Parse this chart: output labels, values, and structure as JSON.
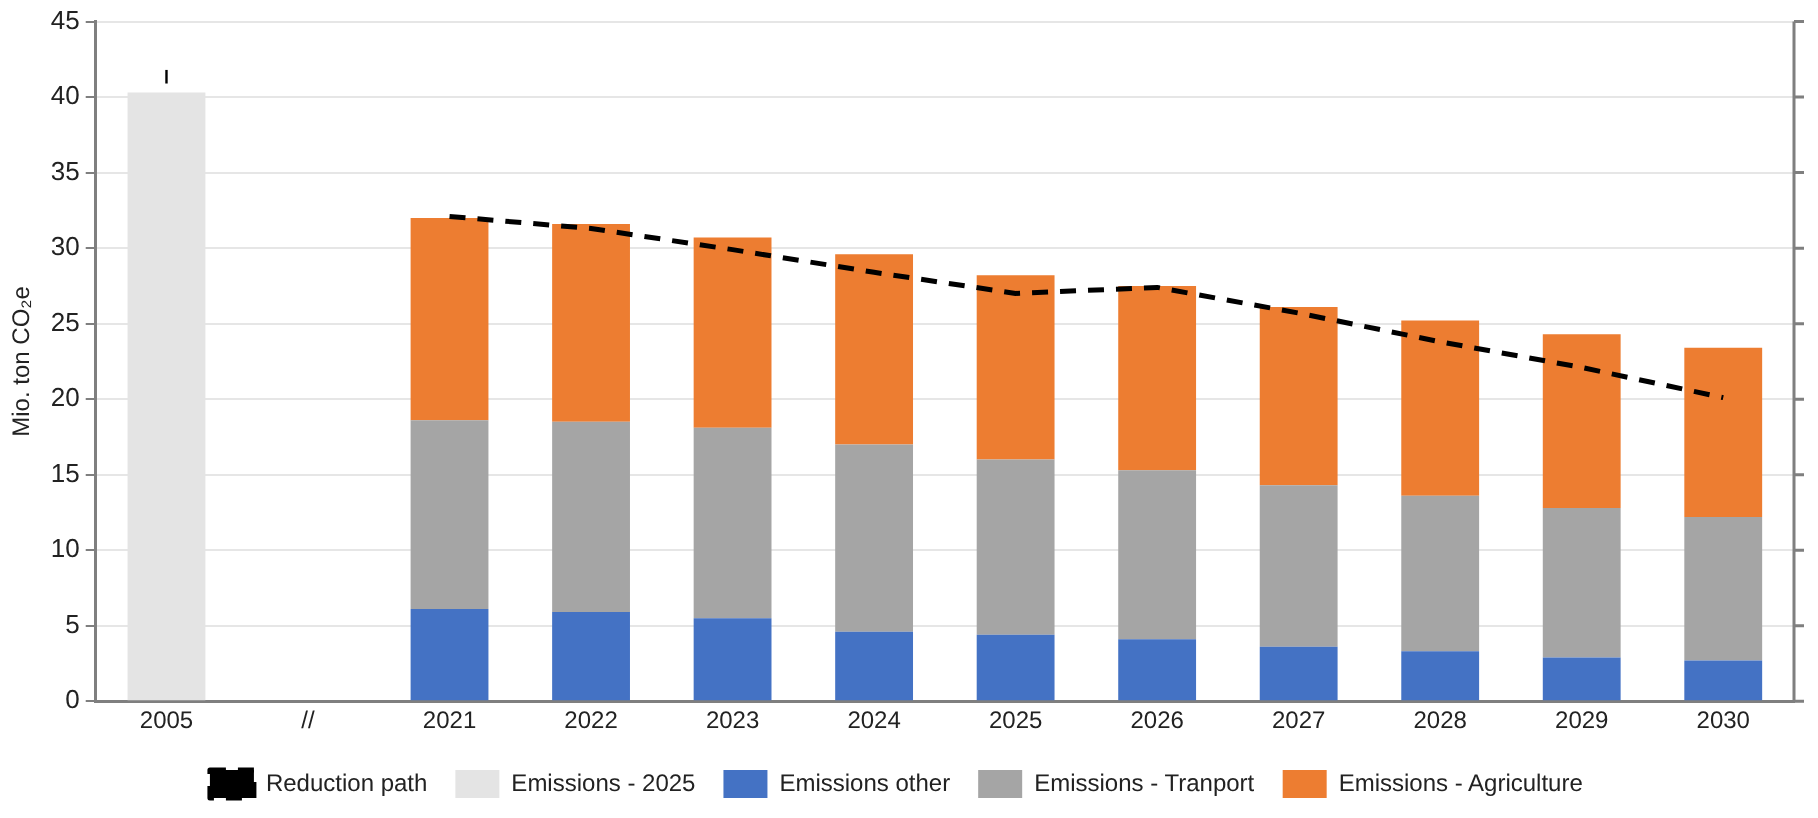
{
  "chart_data": {
    "type": "bar",
    "stacked": true,
    "ylabel": "Mio. ton CO₂e",
    "categories": [
      "2005",
      "//",
      "2021",
      "2022",
      "2023",
      "2024",
      "2025",
      "2026",
      "2027",
      "2028",
      "2029",
      "2030"
    ],
    "series": [
      {
        "name": "Emissions - 2025",
        "color": "#e4e4e4",
        "values": [
          40.3,
          null,
          null,
          null,
          null,
          null,
          null,
          null,
          null,
          null,
          null,
          null
        ],
        "errors": [
          [
            40.9,
            41.8
          ],
          null,
          null,
          null,
          null,
          null,
          null,
          null,
          null,
          null,
          null,
          null
        ]
      },
      {
        "name": "Emissions other",
        "color": "#4472c4",
        "values": [
          null,
          null,
          6.1,
          5.9,
          5.5,
          4.6,
          4.4,
          4.1,
          3.6,
          3.3,
          2.9,
          2.7
        ]
      },
      {
        "name": "Emissions - Tranport",
        "color": "#a5a5a5",
        "values": [
          null,
          null,
          12.5,
          12.6,
          12.6,
          12.4,
          11.6,
          11.2,
          10.7,
          10.3,
          9.9,
          9.5
        ]
      },
      {
        "name": "Emissions - Agriculture",
        "color": "#ed7d31",
        "values": [
          null,
          null,
          13.4,
          13.1,
          12.6,
          12.6,
          12.2,
          12.2,
          11.8,
          11.6,
          11.5,
          11.2
        ]
      },
      {
        "name": "Reduction path",
        "type": "line",
        "color": "#000000",
        "line_style": "dashed",
        "marker": "none",
        "values": [
          null,
          null,
          32.1,
          31.3,
          29.9,
          28.4,
          27.0,
          27.4,
          25.7,
          23.8,
          22.1,
          20.1
        ]
      }
    ],
    "ylim": [
      0,
      45
    ],
    "yticks": [
      0,
      5,
      10,
      15,
      20,
      25,
      30,
      35,
      40,
      45
    ],
    "grid": "y",
    "legend": "bottom"
  }
}
